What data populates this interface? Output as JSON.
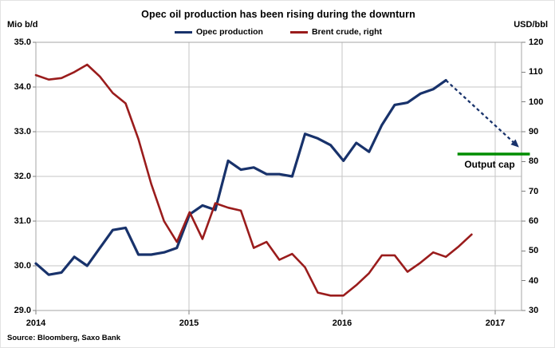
{
  "header": {
    "title": "Opec oil production has been rising during  the downturn",
    "left_unit": "Mio b/d",
    "right_unit": "USD/bbl"
  },
  "legend": [
    {
      "label": "Opec production",
      "color": "#18326b"
    },
    {
      "label": "Brent crude, right",
      "color": "#9a1c1c"
    }
  ],
  "source": "Source: Bloomberg, Saxo Bank",
  "annotation": {
    "output_cap_label": "Output cap",
    "output_cap_value": 32.5,
    "cap_color": "#008d00",
    "arrow_color": "#18326b"
  },
  "colors": {
    "gridline": "#c6c6c6",
    "border": "#a6a6a6",
    "tick": "#7f7f7f"
  },
  "chart_data": {
    "type": "line",
    "title": "Opec oil production has been rising during the downturn",
    "x_start": "2014-01",
    "x_interval": "monthly",
    "x_tick_labels": [
      "2014",
      "2015",
      "2016",
      "2017"
    ],
    "left_axis": {
      "label": "Mio b/d",
      "min": 29.0,
      "max": 35.0,
      "tick_labels": [
        "35.0",
        "34.0",
        "33.0",
        "32.0",
        "31.0",
        "30.0",
        "29.0"
      ]
    },
    "right_axis": {
      "label": "USD/bbl",
      "min": 30,
      "max": 120,
      "tick_labels": [
        "120",
        "110",
        "100",
        "90",
        "80",
        "70",
        "60",
        "50",
        "40",
        "30"
      ]
    },
    "grid": true,
    "legend_position": "top",
    "series": [
      {
        "name": "Opec production",
        "axis": "left",
        "color": "#18326b",
        "width": 3.2,
        "values": [
          30.05,
          29.8,
          29.85,
          30.2,
          30.0,
          30.4,
          30.8,
          30.85,
          30.25,
          30.25,
          30.3,
          30.4,
          31.15,
          31.35,
          31.25,
          32.35,
          32.15,
          32.2,
          32.05,
          32.05,
          32.0,
          32.95,
          32.85,
          32.7,
          32.35,
          32.75,
          32.55,
          33.15,
          33.6,
          33.65,
          33.85,
          33.95,
          34.15
        ]
      },
      {
        "name": "Brent crude, right",
        "axis": "right",
        "color": "#9a1c1c",
        "width": 2.6,
        "values": [
          109,
          107.5,
          108,
          110,
          112.5,
          108.5,
          103,
          99.5,
          87.5,
          72.5,
          60,
          53,
          63,
          54,
          66,
          64.5,
          63.5,
          51,
          53,
          47,
          49,
          44.5,
          36,
          35,
          35,
          38.5,
          42.5,
          48.5,
          48.5,
          43,
          46,
          49.5,
          48,
          51.5,
          55.5
        ]
      }
    ],
    "projection": {
      "name": "Opec production projection",
      "axis": "left",
      "style": "dashed-arrow",
      "points_month_index_value": [
        [
          32,
          34.15
        ],
        [
          37.7,
          32.65
        ]
      ]
    },
    "output_cap": {
      "axis": "left",
      "value": 32.5,
      "from_month_index": 32.9,
      "to_month_index": 38.55,
      "label": "Output cap"
    }
  }
}
